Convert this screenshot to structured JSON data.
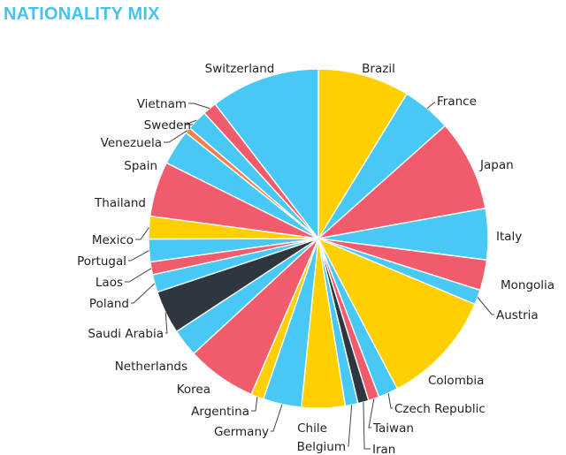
{
  "title": "NATIONALITY MIX",
  "colors": {
    "title": "#45C3EE",
    "yellow": "#FFCF00",
    "blue": "#48C8F4",
    "red": "#F05C6C",
    "dark": "#2E3640",
    "orange": "#F57E4F"
  },
  "chart_data": {
    "type": "pie",
    "title": "NATIONALITY MIX",
    "unit": "% of total (estimated)",
    "slices": [
      {
        "label": "Brazil",
        "value": 9.3,
        "color": "yellow"
      },
      {
        "label": "France",
        "value": 5.0,
        "color": "blue"
      },
      {
        "label": "Japan",
        "value": 9.3,
        "color": "red"
      },
      {
        "label": "Italy",
        "value": 5.2,
        "color": "blue"
      },
      {
        "label": "Mongolia",
        "value": 3.1,
        "color": "red"
      },
      {
        "label": "Austria",
        "value": 1.5,
        "color": "blue"
      },
      {
        "label": "Colombia",
        "value": 11.7,
        "color": "yellow"
      },
      {
        "label": "Czech Republic",
        "value": 2.0,
        "color": "blue"
      },
      {
        "label": "Taiwan",
        "value": 1.1,
        "color": "red"
      },
      {
        "label": "Iran",
        "value": 1.1,
        "color": "dark"
      },
      {
        "label": "Belgium",
        "value": 1.3,
        "color": "blue"
      },
      {
        "label": "Chile",
        "value": 4.4,
        "color": "yellow"
      },
      {
        "label": "Germany",
        "value": 3.9,
        "color": "blue"
      },
      {
        "label": "Argentina",
        "value": 1.3,
        "color": "yellow"
      },
      {
        "label": "Korea",
        "value": 7.1,
        "color": "red"
      },
      {
        "label": "Netherlands",
        "value": 2.8,
        "color": "blue"
      },
      {
        "label": "Saudi Arabia",
        "value": 4.4,
        "color": "dark"
      },
      {
        "label": "Poland",
        "value": 1.8,
        "color": "blue"
      },
      {
        "label": "Laos",
        "value": 1.3,
        "color": "red"
      },
      {
        "label": "Portugal",
        "value": 2.3,
        "color": "blue"
      },
      {
        "label": "Mexico",
        "value": 2.3,
        "color": "yellow"
      },
      {
        "label": "Thailand",
        "value": 5.6,
        "color": "red"
      },
      {
        "label": "Spain",
        "value": 3.6,
        "color": "blue"
      },
      {
        "label": "Venezuela",
        "value": 0.6,
        "color": "orange"
      },
      {
        "label": "Sweden",
        "value": 2.1,
        "color": "blue"
      },
      {
        "label": "Vietnam",
        "value": 1.4,
        "color": "red"
      },
      {
        "label": "Switzerland",
        "value": 11.1,
        "color": "blue"
      }
    ]
  }
}
